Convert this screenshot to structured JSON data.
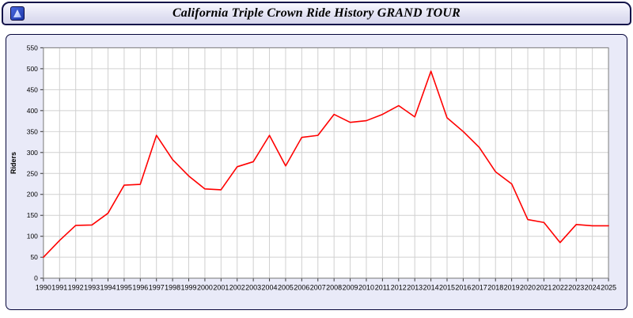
{
  "window": {
    "title": "California Triple Crown Ride History GRAND TOUR"
  },
  "titlebar": {
    "icon": "app-icon"
  },
  "colors": {
    "line": "#ff0000",
    "panel_background": "#e9eaf8",
    "plot_background": "#ffffff",
    "gridline": "#d0d0d0",
    "plot_frame": "#808080",
    "tick_label": "#000000"
  },
  "chart_data": {
    "type": "line",
    "title": "California Triple Crown Ride History GRAND TOUR",
    "xlabel": "",
    "ylabel": "Riders",
    "ylim": [
      0,
      550
    ],
    "ytick_interval": 50,
    "grid": true,
    "legend": "none",
    "x": [
      1990,
      1991,
      1992,
      1993,
      1994,
      1995,
      1996,
      1997,
      1998,
      1999,
      2000,
      2001,
      2002,
      2003,
      2004,
      2005,
      2006,
      2007,
      2008,
      2009,
      2010,
      2011,
      2012,
      2013,
      2014,
      2015,
      2016,
      2017,
      2018,
      2019,
      2020,
      2021,
      2022,
      2023,
      2024,
      2025
    ],
    "series": [
      {
        "name": "Riders",
        "color": "#ff0000",
        "values": [
          50,
          90,
          126,
          127,
          155,
          222,
          224,
          341,
          283,
          244,
          213,
          211,
          266,
          278,
          341,
          268,
          336,
          341,
          391,
          372,
          376,
          391,
          412,
          385,
          494,
          383,
          350,
          312,
          254,
          225,
          140,
          133,
          85,
          128,
          125,
          125
        ]
      }
    ]
  }
}
